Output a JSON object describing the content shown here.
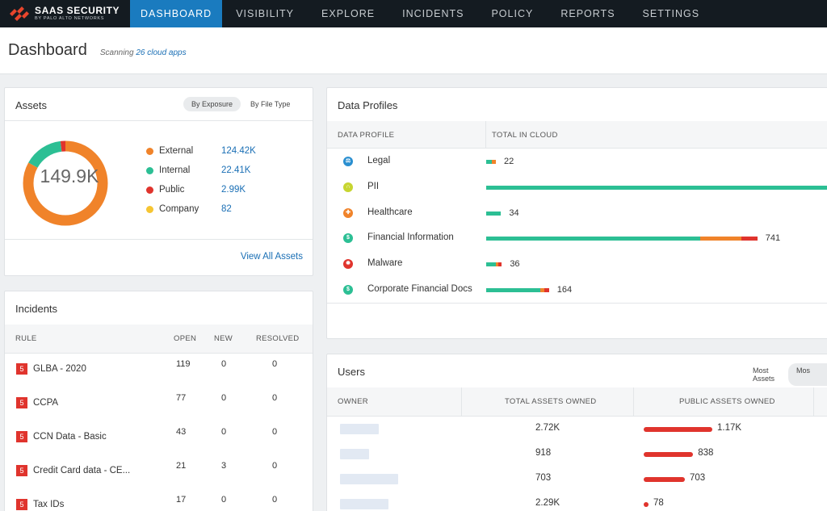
{
  "brand": {
    "name": "SAAS SECURITY",
    "sub": "BY PALO ALTO NETWORKS"
  },
  "nav": [
    "DASHBOARD",
    "VISIBILITY",
    "EXPLORE",
    "INCIDENTS",
    "POLICY",
    "REPORTS",
    "SETTINGS"
  ],
  "header": {
    "title": "Dashboard",
    "scan_prefix": "Scanning",
    "scan_link": "26 cloud apps"
  },
  "assets": {
    "title": "Assets",
    "toggle": [
      "By Exposure",
      "By File Type"
    ],
    "total": "149.9K",
    "legend": [
      {
        "label": "External",
        "value": "124.42K",
        "color": "#f0832a",
        "count": 124.42
      },
      {
        "label": "Internal",
        "value": "22.41K",
        "color": "#2cbf94",
        "count": 22.41
      },
      {
        "label": "Public",
        "value": "2.99K",
        "color": "#e0342d",
        "count": 2.99
      },
      {
        "label": "Company",
        "value": "82",
        "color": "#f6c532",
        "count": 0.082
      }
    ],
    "view_all": "View All Assets"
  },
  "incidents": {
    "title": "Incidents",
    "headers": [
      "RULE",
      "OPEN",
      "NEW",
      "RESOLVED"
    ],
    "rows": [
      {
        "severity": "5",
        "rule": "GLBA - 2020",
        "open": "119",
        "new": "0",
        "resolved": "0"
      },
      {
        "severity": "5",
        "rule": "CCPA",
        "open": "77",
        "new": "0",
        "resolved": "0"
      },
      {
        "severity": "5",
        "rule": "CCN Data - Basic",
        "open": "43",
        "new": "0",
        "resolved": "0"
      },
      {
        "severity": "5",
        "rule": "Credit Card data - CE...",
        "open": "21",
        "new": "3",
        "resolved": "0"
      },
      {
        "severity": "5",
        "rule": "Tax IDs",
        "open": "17",
        "new": "0",
        "resolved": "0"
      }
    ]
  },
  "profiles": {
    "title": "Data Profiles",
    "headers": [
      "DATA PROFILE",
      "TOTAL IN CLOUD"
    ],
    "rows": [
      {
        "name": "Legal",
        "icon": "legal-icon",
        "glyph": "⚖",
        "icon_color": "#2a8fd0",
        "count": "22",
        "segments": [
          {
            "share": 0.55,
            "color": "#2cbf94"
          },
          {
            "share": 0.45,
            "color": "#f0832a"
          }
        ],
        "fill": 0.026
      },
      {
        "name": "PII",
        "icon": "pii-icon",
        "glyph": "∩",
        "icon_color": "#c7d531",
        "count": "",
        "segments": [
          {
            "share": 1,
            "color": "#2cbf94"
          }
        ],
        "fill": 1
      },
      {
        "name": "Healthcare",
        "icon": "healthcare-icon",
        "glyph": "✚",
        "icon_color": "#f0832a",
        "count": "34",
        "segments": [
          {
            "share": 1,
            "color": "#2cbf94"
          }
        ],
        "fill": 0.04
      },
      {
        "name": "Financial Information",
        "icon": "financial-icon",
        "glyph": "$",
        "icon_color": "#2cbf94",
        "count": "741",
        "segments": [
          {
            "share": 0.79,
            "color": "#2cbf94"
          },
          {
            "share": 0.15,
            "color": "#f0832a"
          },
          {
            "share": 0.06,
            "color": "#e0342d"
          }
        ],
        "fill": 0.73
      },
      {
        "name": "Malware",
        "icon": "malware-icon",
        "glyph": "✹",
        "icon_color": "#e0342d",
        "count": "36",
        "segments": [
          {
            "share": 0.6,
            "color": "#2cbf94"
          },
          {
            "share": 0.2,
            "color": "#f0832a"
          },
          {
            "share": 0.2,
            "color": "#e0342d"
          }
        ],
        "fill": 0.042
      },
      {
        "name": "Corporate Financial Docs",
        "icon": "corporate-financial-icon",
        "glyph": "$",
        "icon_color": "#2cbf94",
        "count": "164",
        "segments": [
          {
            "share": 0.86,
            "color": "#2cbf94"
          },
          {
            "share": 0.07,
            "color": "#f0832a"
          },
          {
            "share": 0.07,
            "color": "#e0342d"
          }
        ],
        "fill": 0.169
      }
    ]
  },
  "users": {
    "title": "Users",
    "toggle": [
      "Most Assets",
      "Mos"
    ],
    "headers": [
      "OWNER",
      "TOTAL ASSETS OWNED",
      "PUBLIC ASSETS OWNED"
    ],
    "rows": [
      {
        "total": "2.72K",
        "public": "1.17K",
        "public_fill": 1.0
      },
      {
        "total": "918",
        "public": "838",
        "public_fill": 0.72
      },
      {
        "total": "703",
        "public": "703",
        "public_fill": 0.6
      },
      {
        "total": "2.29K",
        "public": "78",
        "public_fill": 0.07
      }
    ]
  }
}
